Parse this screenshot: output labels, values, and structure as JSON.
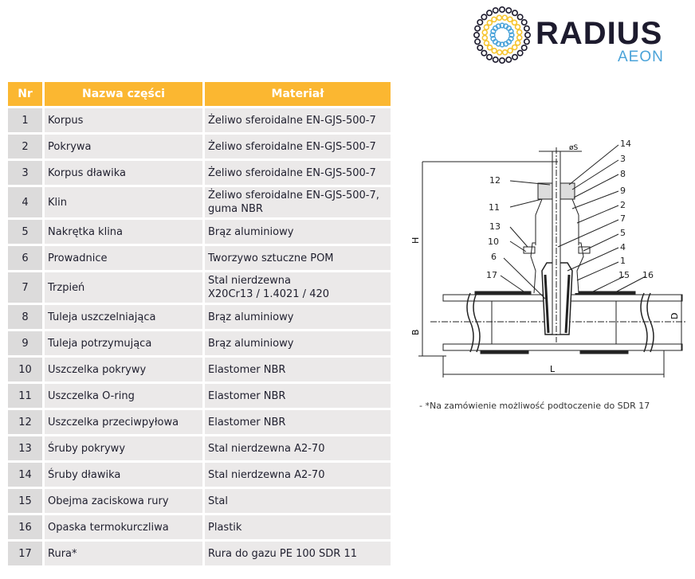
{
  "logo": {
    "brand": "RADIUS",
    "sub": "AEON",
    "colors": {
      "dark": "#1d1b2e",
      "yellow": "#f6c531",
      "blue": "#4aa3d9"
    }
  },
  "table": {
    "headers": [
      "Nr",
      "Nazwa części",
      "Materiał"
    ],
    "header_color": "#fbb731",
    "rows": [
      {
        "nr": "1",
        "name": "Korpus",
        "material": "Żeliwo sferoidalne EN-GJS-500-7"
      },
      {
        "nr": "2",
        "name": "Pokrywa",
        "material": "Żeliwo sferoidalne EN-GJS-500-7"
      },
      {
        "nr": "3",
        "name": "Korpus dławika",
        "material": "Żeliwo sferoidalne EN-GJS-500-7"
      },
      {
        "nr": "4",
        "name": "Klin",
        "material": "Żeliwo sferoidalne EN-GJS-500-7,",
        "material2": "guma NBR"
      },
      {
        "nr": "5",
        "name": "Nakrętka klina",
        "material": "Brąz aluminiowy"
      },
      {
        "nr": "6",
        "name": "Prowadnice",
        "material": "Tworzywo sztuczne POM"
      },
      {
        "nr": "7",
        "name": "Trzpień",
        "material": "Stal nierdzewna",
        "material2": "X20Cr13 / 1.4021 / 420"
      },
      {
        "nr": "8",
        "name": "Tuleja uszczelniająca",
        "material": "Brąz aluminiowy"
      },
      {
        "nr": "9",
        "name": "Tuleja potrzymująca",
        "material": "Brąz aluminiowy"
      },
      {
        "nr": "10",
        "name": "Uszczelka pokrywy",
        "material": "Elastomer NBR"
      },
      {
        "nr": "11",
        "name": "Uszczelka O-ring",
        "material": "Elastomer NBR"
      },
      {
        "nr": "12",
        "name": "Uszczelka przeciwpyłowa",
        "material": "Elastomer NBR"
      },
      {
        "nr": "13",
        "name": "Śruby pokrywy",
        "material": "Stal nierdzewna A2-70"
      },
      {
        "nr": "14",
        "name": "Śruby dławika",
        "material": "Stal nierdzewna A2-70"
      },
      {
        "nr": "15",
        "name": "Obejma zaciskowa rury",
        "material": "Stal"
      },
      {
        "nr": "16",
        "name": "Opaska termokurczliwa",
        "material": "Plastik"
      },
      {
        "nr": "17",
        "name": "Rura*",
        "material": "Rura do gazu PE 100 SDR 11"
      }
    ]
  },
  "diagram": {
    "labels": [
      "14",
      "3",
      "8",
      "12",
      "9",
      "11",
      "2",
      "7",
      "13",
      "5",
      "10",
      "4",
      "6",
      "1",
      "17",
      "15",
      "16"
    ],
    "dims": {
      "H": "H",
      "B": "B",
      "D": "D",
      "L": "L",
      "S": "øS"
    }
  },
  "note": "- *Na zamówienie możliwość podtoczenie do SDR 17"
}
